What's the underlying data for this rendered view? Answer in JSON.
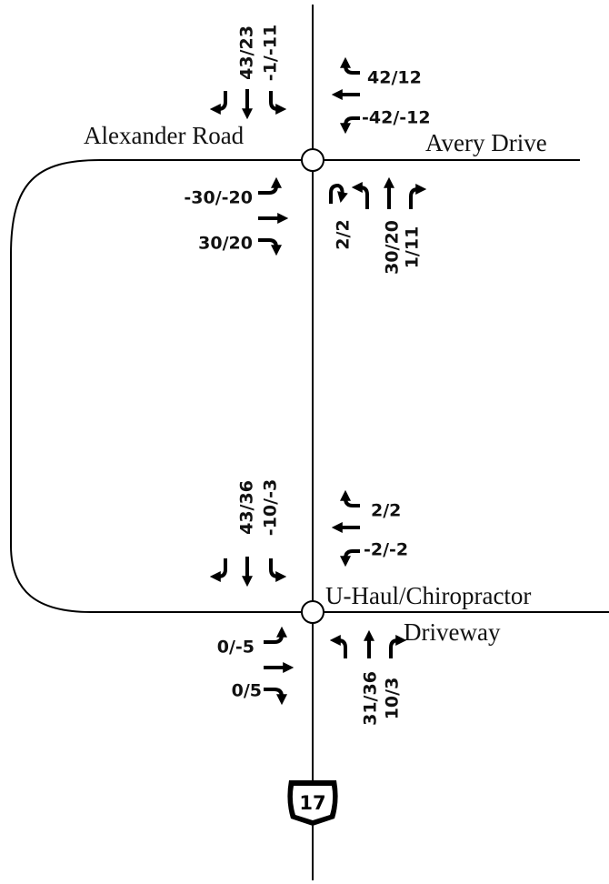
{
  "roads": {
    "alexander": "Alexander Road",
    "avery": "Avery Drive",
    "uhaul": "U-Haul/Chiropractor",
    "driveway": "Driveway"
  },
  "route_shield": "17",
  "intersections": [
    {
      "southbound": [
        "43/23",
        "-1/-11"
      ],
      "westbound": [
        "42/12",
        "-42/-12"
      ],
      "eastbound": [
        "-30/-20",
        "30/20"
      ],
      "northbound": [
        "2/2",
        "30/20",
        "1/11"
      ]
    },
    {
      "southbound": [
        "43/36",
        "-10/-3"
      ],
      "westbound": [
        "2/2",
        "-2/-2"
      ],
      "eastbound": [
        "0/-5",
        "0/5"
      ],
      "northbound": [
        "31/36",
        "10/3"
      ]
    }
  ]
}
